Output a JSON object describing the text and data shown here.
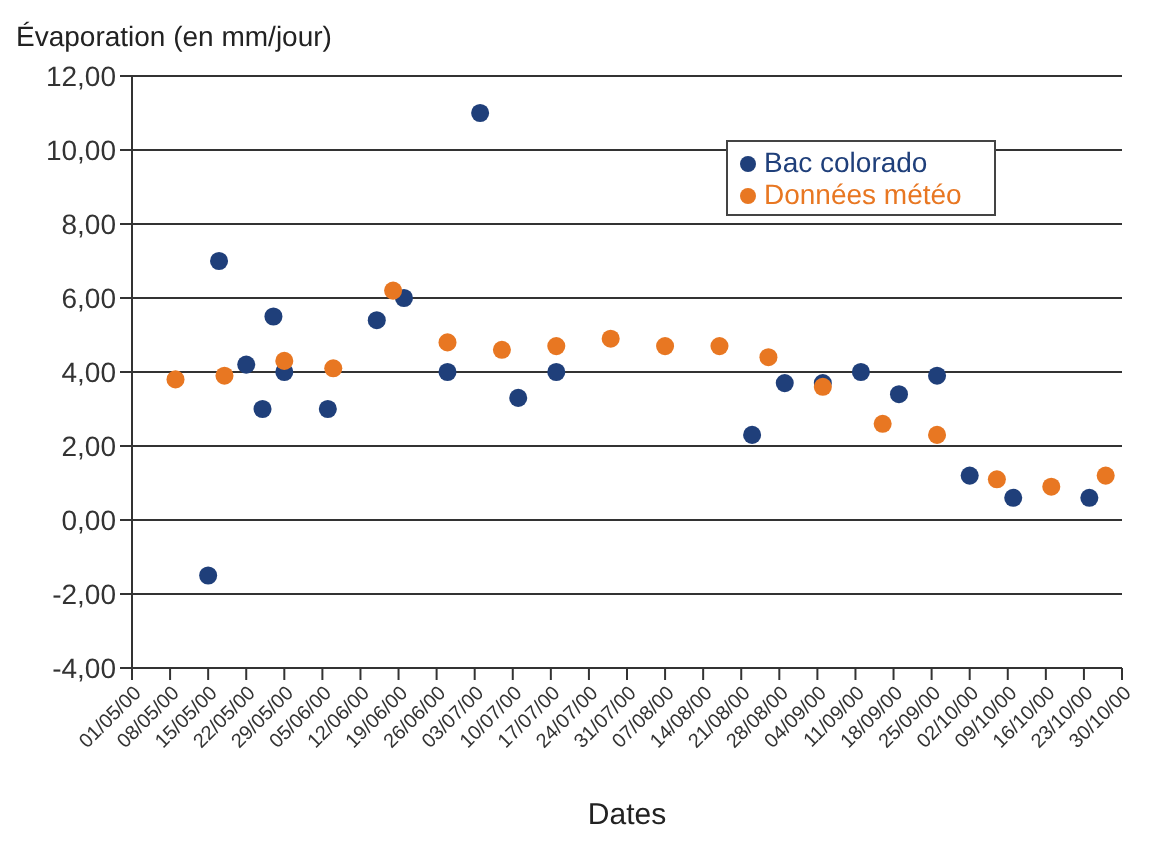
{
  "chart_data": {
    "type": "scatter",
    "ylabel": "Évaporation (en mm/jour)",
    "xlabel": "Dates",
    "series": [
      {
        "name": "Bac colorado",
        "color": "#1f3f7a",
        "x": [
          "2000-05-15",
          "2000-05-17",
          "2000-05-22",
          "2000-05-25",
          "2000-05-27",
          "2000-05-29",
          "2000-06-06",
          "2000-06-15",
          "2000-06-20",
          "2000-06-28",
          "2000-07-04",
          "2000-07-11",
          "2000-07-18",
          "2000-08-23",
          "2000-08-29",
          "2000-09-05",
          "2000-09-12",
          "2000-09-19",
          "2000-09-26",
          "2000-10-02",
          "2000-10-10",
          "2000-10-24"
        ],
        "values": [
          -1.5,
          7.0,
          4.2,
          3.0,
          5.5,
          4.0,
          3.0,
          5.4,
          6.0,
          4.0,
          11.0,
          3.3,
          4.0,
          2.3,
          3.7,
          3.7,
          4.0,
          3.4,
          3.9,
          1.2,
          0.6,
          0.6
        ]
      },
      {
        "name": "Données météo",
        "color": "#e87722",
        "x": [
          "2000-05-09",
          "2000-05-18",
          "2000-05-29",
          "2000-06-07",
          "2000-06-18",
          "2000-06-28",
          "2000-07-08",
          "2000-07-18",
          "2000-07-28",
          "2000-08-07",
          "2000-08-17",
          "2000-08-26",
          "2000-09-05",
          "2000-09-16",
          "2000-09-26",
          "2000-10-07",
          "2000-10-17",
          "2000-10-27"
        ],
        "values": [
          3.8,
          3.9,
          4.3,
          4.1,
          6.2,
          4.8,
          4.6,
          4.7,
          4.9,
          4.7,
          4.7,
          4.4,
          3.6,
          2.6,
          2.3,
          1.1,
          0.9,
          1.2
        ]
      }
    ],
    "xlim": [
      "2000-05-01",
      "2000-10-30"
    ],
    "xticks": [
      {
        "value": "2000-05-01",
        "label": "01/05/00"
      },
      {
        "value": "2000-05-08",
        "label": "08/05/00"
      },
      {
        "value": "2000-05-15",
        "label": "15/05/00"
      },
      {
        "value": "2000-05-22",
        "label": "22/05/00"
      },
      {
        "value": "2000-05-29",
        "label": "29/05/00"
      },
      {
        "value": "2000-06-05",
        "label": "05/06/00"
      },
      {
        "value": "2000-06-12",
        "label": "12/06/00"
      },
      {
        "value": "2000-06-19",
        "label": "19/06/00"
      },
      {
        "value": "2000-06-26",
        "label": "26/06/00"
      },
      {
        "value": "2000-07-03",
        "label": "03/07/00"
      },
      {
        "value": "2000-07-10",
        "label": "10/07/00"
      },
      {
        "value": "2000-07-17",
        "label": "17/07/00"
      },
      {
        "value": "2000-07-24",
        "label": "24/07/00"
      },
      {
        "value": "2000-07-31",
        "label": "31/07/00"
      },
      {
        "value": "2000-08-07",
        "label": "07/08/00"
      },
      {
        "value": "2000-08-14",
        "label": "14/08/00"
      },
      {
        "value": "2000-08-21",
        "label": "21/08/00"
      },
      {
        "value": "2000-08-28",
        "label": "28/08/00"
      },
      {
        "value": "2000-09-04",
        "label": "04/09/00"
      },
      {
        "value": "2000-09-11",
        "label": "11/09/00"
      },
      {
        "value": "2000-09-18",
        "label": "18/09/00"
      },
      {
        "value": "2000-09-25",
        "label": "25/09/00"
      },
      {
        "value": "2000-10-02",
        "label": "02/10/00"
      },
      {
        "value": "2000-10-09",
        "label": "09/10/00"
      },
      {
        "value": "2000-10-16",
        "label": "16/10/00"
      },
      {
        "value": "2000-10-23",
        "label": "23/10/00"
      },
      {
        "value": "2000-10-30",
        "label": "30/10/00"
      }
    ],
    "ylim": [
      -4,
      12
    ],
    "yticks": [
      {
        "value": -4,
        "label": "-4,00"
      },
      {
        "value": -2,
        "label": "-2,00"
      },
      {
        "value": 0,
        "label": "0,00"
      },
      {
        "value": 2,
        "label": "2,00"
      },
      {
        "value": 4,
        "label": "4,00"
      },
      {
        "value": 6,
        "label": "6,00"
      },
      {
        "value": 8,
        "label": "8,00"
      },
      {
        "value": 10,
        "label": "10,00"
      },
      {
        "value": 12,
        "label": "12,00"
      }
    ],
    "grid": "y",
    "legend": "top right",
    "marker": "circle"
  }
}
